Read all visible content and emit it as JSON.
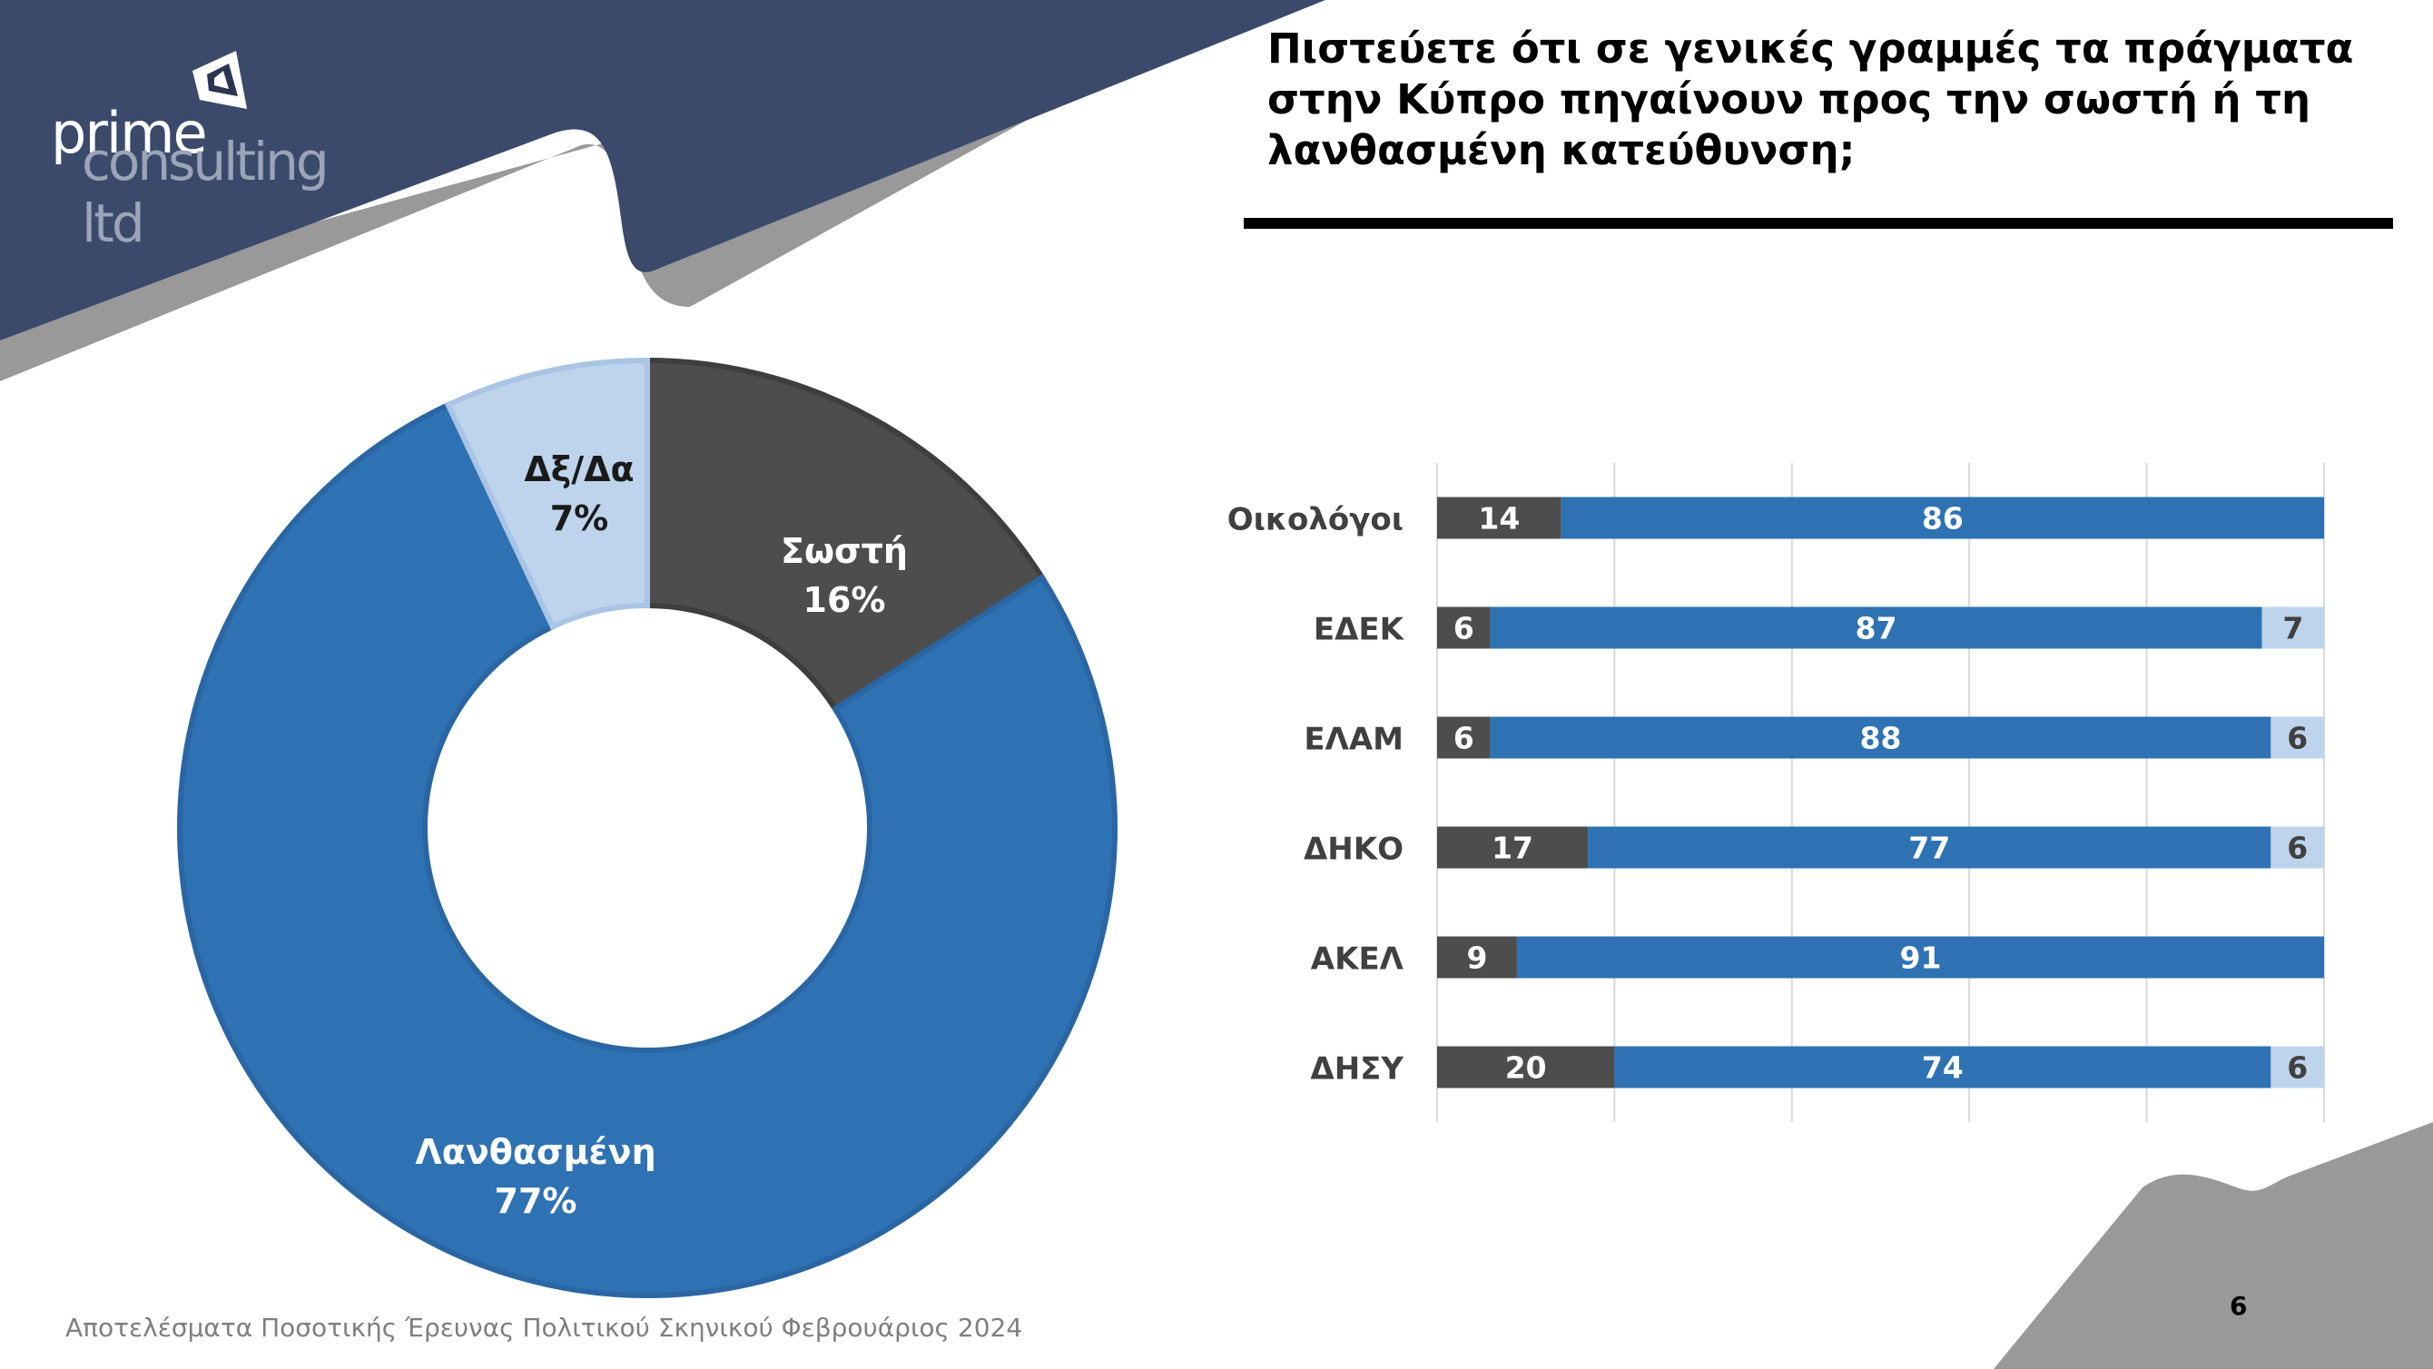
{
  "header": {
    "logo_line1": "prime",
    "logo_line2": "consulting ltd",
    "title": "Πιστεύετε ότι σε γενικές γραμμές τα πράγματα στην Κύπρο πηγαίνουν προς την σωστή ή τη λανθασμένη κατεύθυνση;"
  },
  "footer": {
    "source": "Αποτελέσματα Ποσοτικής Έρευνας Πολιτικού Σκηνικού Φεβρουάριος 2024",
    "page": "6"
  },
  "colors": {
    "navy": "#3b4a6b",
    "gray_band": "#999999",
    "dark": "#4d4d4d",
    "blue": "#2e72b3",
    "light_blue": "#bdd4ec"
  },
  "chart_data": [
    {
      "type": "pie",
      "variant": "donut",
      "slices": [
        {
          "label": "Σωστή",
          "value": 16,
          "display": "16%",
          "color": "#4d4d4d"
        },
        {
          "label": "Λανθασμένη",
          "value": 77,
          "display": "77%",
          "color": "#2e72b3"
        },
        {
          "label": "Δξ/Δα",
          "value": 7,
          "display": "7%",
          "color": "#bdd4ec"
        }
      ]
    },
    {
      "type": "bar",
      "orientation": "horizontal",
      "stacked": true,
      "categories": [
        "Οικολόγοι",
        "ΕΔΕΚ",
        "ΕΛΑΜ",
        "ΔΗΚΟ",
        "ΑΚΕΛ",
        "ΔΗΣΥ"
      ],
      "series": [
        {
          "values": [
            14,
            6,
            6,
            17,
            9,
            20
          ],
          "color": "#4d4d4d"
        },
        {
          "values": [
            86,
            87,
            88,
            77,
            91,
            74
          ],
          "color": "#2e72b3"
        },
        {
          "values": [
            null,
            7,
            6,
            6,
            null,
            6
          ],
          "color": "#bdd4ec"
        }
      ],
      "xlim": [
        0,
        100
      ],
      "grid": true
    }
  ]
}
